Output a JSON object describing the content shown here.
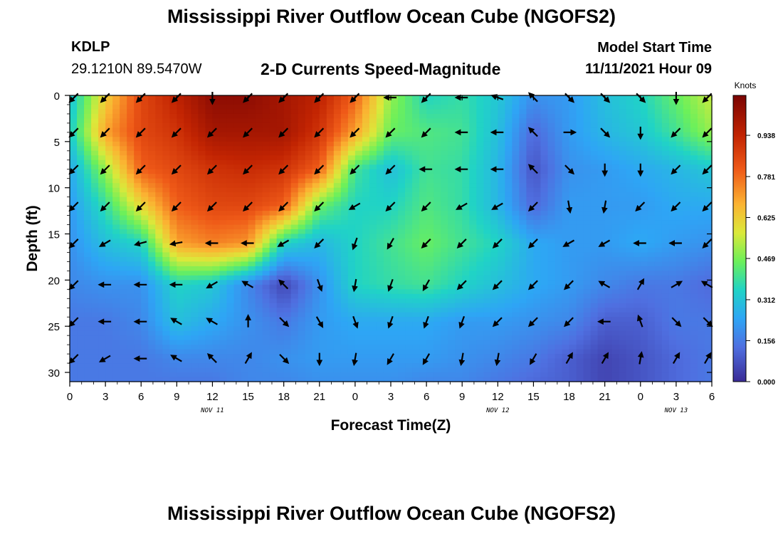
{
  "header": {
    "title": "Mississippi River Outflow Ocean Cube (NGOFS2)",
    "station": "KDLP",
    "coordinates": "29.1210N  89.5470W",
    "subtitle": "2-D Currents Speed-Magnitude",
    "model_start_label": "Model Start Time",
    "model_start_value": "11/11/2021 Hour 09"
  },
  "footer": {
    "title": "Mississippi River Outflow Ocean Cube (NGOFS2)"
  },
  "chart_data": {
    "type": "heatmap",
    "xlabel": "Forecast Time(Z)",
    "ylabel": "Depth (ft)",
    "x_ticks": [
      "0",
      "3",
      "6",
      "9",
      "12",
      "15",
      "18",
      "21",
      "0",
      "3",
      "6",
      "9",
      "12",
      "15",
      "18",
      "21",
      "0",
      "3",
      "6"
    ],
    "date_labels": [
      {
        "label": "NOV 11",
        "at_tick": 4
      },
      {
        "label": "NOV 12",
        "at_tick": 12
      },
      {
        "label": "NOV 13",
        "at_tick": 17
      }
    ],
    "y_ticks": [
      0,
      5,
      10,
      15,
      20,
      25,
      30
    ],
    "ylim": [
      0,
      31
    ],
    "colorbar": {
      "unit": "Knots",
      "min": 0,
      "max": 1.09,
      "ticks": [
        "0.938",
        "0.781",
        "0.625",
        "0.469",
        "0.312",
        "0.156",
        "0.000"
      ],
      "tick_values": [
        0.938,
        0.781,
        0.625,
        0.469,
        0.312,
        0.156,
        0.0
      ]
    },
    "arrow_depths": [
      0,
      4,
      8,
      12,
      16,
      20.5,
      24.5,
      28.5
    ],
    "arrow_times_hours": [
      0,
      3,
      6,
      9,
      12,
      15,
      18,
      21,
      24,
      27,
      30,
      33,
      36,
      39,
      42,
      45,
      48,
      51,
      54
    ],
    "speed_grid_depths": [
      0,
      4,
      8,
      12,
      16,
      20.5,
      24.5,
      28.5,
      31
    ],
    "speed_grid_times": [
      0,
      3,
      6,
      9,
      12,
      15,
      18,
      21,
      24,
      27,
      30,
      33,
      36,
      39,
      42,
      45,
      48,
      51,
      54
    ],
    "speed_grid": [
      [
        0.3,
        0.62,
        0.85,
        0.95,
        1.05,
        1.05,
        1.0,
        0.95,
        0.8,
        0.5,
        0.35,
        0.38,
        0.32,
        0.2,
        0.22,
        0.3,
        0.35,
        0.45,
        0.55
      ],
      [
        0.33,
        0.7,
        0.85,
        0.9,
        1.0,
        1.0,
        1.0,
        0.9,
        0.7,
        0.45,
        0.42,
        0.4,
        0.3,
        0.12,
        0.22,
        0.28,
        0.32,
        0.4,
        0.5
      ],
      [
        0.25,
        0.5,
        0.8,
        0.85,
        0.9,
        0.92,
        0.9,
        0.8,
        0.4,
        0.3,
        0.4,
        0.38,
        0.28,
        0.08,
        0.2,
        0.22,
        0.25,
        0.28,
        0.32
      ],
      [
        0.22,
        0.38,
        0.6,
        0.8,
        0.85,
        0.85,
        0.8,
        0.45,
        0.35,
        0.35,
        0.42,
        0.38,
        0.28,
        0.12,
        0.22,
        0.22,
        0.22,
        0.25,
        0.25
      ],
      [
        0.2,
        0.3,
        0.35,
        0.7,
        0.75,
        0.72,
        0.35,
        0.28,
        0.35,
        0.4,
        0.45,
        0.4,
        0.35,
        0.25,
        0.22,
        0.22,
        0.25,
        0.22,
        0.2
      ],
      [
        0.18,
        0.2,
        0.2,
        0.35,
        0.32,
        0.18,
        0.05,
        0.2,
        0.35,
        0.38,
        0.4,
        0.35,
        0.3,
        0.25,
        0.22,
        0.18,
        0.15,
        0.15,
        0.12
      ],
      [
        0.15,
        0.15,
        0.18,
        0.3,
        0.25,
        0.2,
        0.15,
        0.22,
        0.25,
        0.25,
        0.25,
        0.22,
        0.22,
        0.2,
        0.18,
        0.1,
        0.1,
        0.15,
        0.15
      ],
      [
        0.15,
        0.15,
        0.15,
        0.18,
        0.18,
        0.18,
        0.2,
        0.22,
        0.22,
        0.22,
        0.22,
        0.2,
        0.18,
        0.15,
        0.1,
        0.05,
        0.08,
        0.12,
        0.15
      ],
      [
        0.15,
        0.15,
        0.15,
        0.15,
        0.15,
        0.18,
        0.18,
        0.2,
        0.2,
        0.2,
        0.18,
        0.18,
        0.15,
        0.12,
        0.1,
        0.05,
        0.08,
        0.12,
        0.15
      ]
    ],
    "arrow_directions_deg": [
      [
        135,
        135,
        135,
        135,
        90,
        135,
        135,
        135,
        135,
        180,
        135,
        180,
        200,
        225,
        45,
        45,
        45,
        90,
        135
      ],
      [
        135,
        135,
        135,
        135,
        135,
        135,
        135,
        135,
        135,
        135,
        135,
        180,
        180,
        225,
        0,
        45,
        90,
        135,
        135
      ],
      [
        135,
        135,
        135,
        135,
        135,
        135,
        135,
        135,
        135,
        135,
        180,
        180,
        180,
        225,
        45,
        90,
        90,
        135,
        135
      ],
      [
        135,
        135,
        135,
        135,
        135,
        135,
        135,
        135,
        150,
        135,
        135,
        150,
        150,
        135,
        80,
        100,
        135,
        135,
        135
      ],
      [
        135,
        150,
        165,
        170,
        180,
        180,
        150,
        135,
        110,
        120,
        135,
        135,
        135,
        135,
        150,
        150,
        180,
        180,
        135
      ],
      [
        135,
        180,
        180,
        180,
        150,
        210,
        225,
        70,
        100,
        110,
        120,
        135,
        135,
        135,
        135,
        210,
        300,
        330,
        210
      ],
      [
        135,
        180,
        180,
        210,
        210,
        270,
        45,
        60,
        70,
        110,
        110,
        110,
        135,
        135,
        135,
        180,
        250,
        45,
        45
      ],
      [
        135,
        150,
        180,
        210,
        225,
        300,
        45,
        90,
        100,
        120,
        120,
        100,
        100,
        120,
        300,
        300,
        280,
        300,
        300
      ]
    ]
  }
}
